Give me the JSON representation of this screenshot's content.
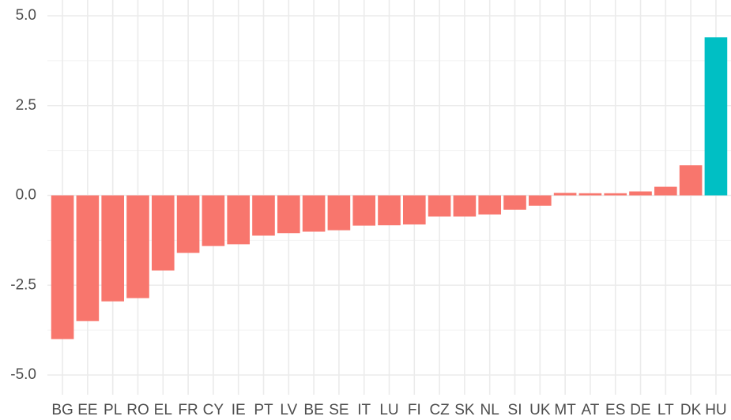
{
  "chart_data": {
    "type": "bar",
    "categories": [
      "BG",
      "EE",
      "PL",
      "RO",
      "EL",
      "FR",
      "CY",
      "IE",
      "PT",
      "LV",
      "BE",
      "SE",
      "IT",
      "LU",
      "FI",
      "CZ",
      "SK",
      "NL",
      "SI",
      "UK",
      "MT",
      "AT",
      "ES",
      "DE",
      "LT",
      "DK",
      "HU"
    ],
    "values": [
      -4.0,
      -3.5,
      -2.95,
      -2.86,
      -2.09,
      -1.6,
      -1.41,
      -1.36,
      -1.12,
      -1.05,
      -1.01,
      -0.97,
      -0.84,
      -0.83,
      -0.81,
      -0.59,
      -0.59,
      -0.53,
      -0.4,
      -0.29,
      0.07,
      0.06,
      0.06,
      0.11,
      0.24,
      0.84,
      4.4
    ],
    "colors": [
      "#F8766D",
      "#F8766D",
      "#F8766D",
      "#F8766D",
      "#F8766D",
      "#F8766D",
      "#F8766D",
      "#F8766D",
      "#F8766D",
      "#F8766D",
      "#F8766D",
      "#F8766D",
      "#F8766D",
      "#F8766D",
      "#F8766D",
      "#F8766D",
      "#F8766D",
      "#F8766D",
      "#F8766D",
      "#F8766D",
      "#F8766D",
      "#F8766D",
      "#F8766D",
      "#F8766D",
      "#F8766D",
      "#F8766D",
      "#00BFC4"
    ],
    "ylim": [
      -5,
      5
    ],
    "yticks": [
      {
        "value": -5,
        "label": "-5.0"
      },
      {
        "value": -2.5,
        "label": "-2.5"
      },
      {
        "value": 0,
        "label": "0.0"
      },
      {
        "value": 2.5,
        "label": "2.5"
      },
      {
        "value": 5,
        "label": "5.0"
      }
    ],
    "grid": true
  }
}
